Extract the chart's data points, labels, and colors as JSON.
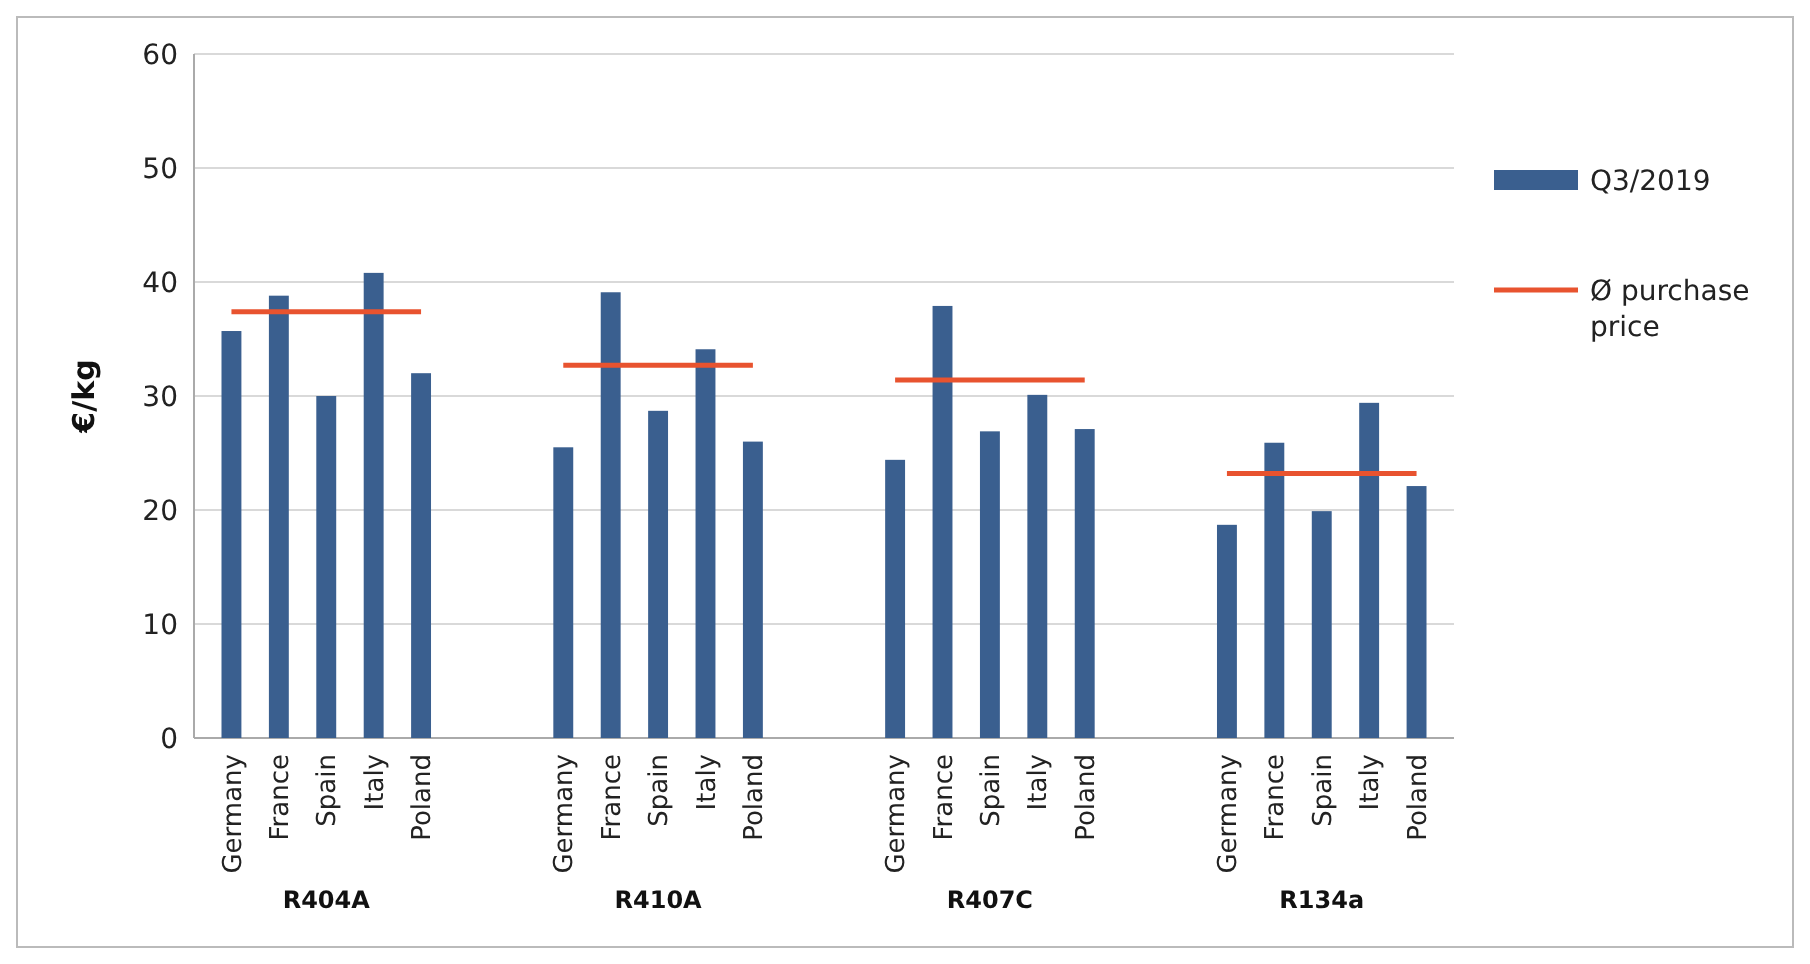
{
  "chart_data": {
    "type": "bar",
    "ylabel": "€/kg",
    "categories": [
      "Germany",
      "France",
      "Spain",
      "Italy",
      "Poland",
      null,
      null,
      "Germany",
      "France",
      "Spain",
      "Italy",
      "Poland",
      null,
      null,
      "Germany",
      "France",
      "Spain",
      "Italy",
      "Poland",
      null,
      null,
      "Germany",
      "France",
      "Spain",
      "Italy",
      "Poland"
    ],
    "series": [
      {
        "name": "Q3/2019",
        "color": "#3a5f8f",
        "values": [
          35.7,
          38.8,
          30.0,
          40.8,
          32.0,
          null,
          null,
          25.5,
          39.1,
          28.7,
          34.1,
          26.0,
          null,
          null,
          24.4,
          37.9,
          26.9,
          30.1,
          27.1,
          null,
          null,
          18.7,
          25.9,
          19.9,
          29.4,
          22.1
        ]
      },
      {
        "name": "Ø purchase price",
        "type": "line",
        "color": "#e8532f",
        "values": [
          37.4,
          37.4,
          37.4,
          37.4,
          37.4,
          null,
          null,
          32.7,
          32.7,
          32.7,
          32.7,
          32.7,
          null,
          null,
          31.4,
          31.4,
          31.4,
          31.4,
          31.4,
          null,
          null,
          23.2,
          23.2,
          23.2,
          23.2,
          23.2
        ]
      }
    ],
    "annotations": [
      "R404A",
      "R410A",
      "R407C",
      "R134a"
    ],
    "ylim": [
      0,
      60
    ],
    "yticks": [
      0,
      10,
      20,
      30,
      40,
      50,
      60
    ],
    "grid": "y",
    "legend": "right"
  }
}
